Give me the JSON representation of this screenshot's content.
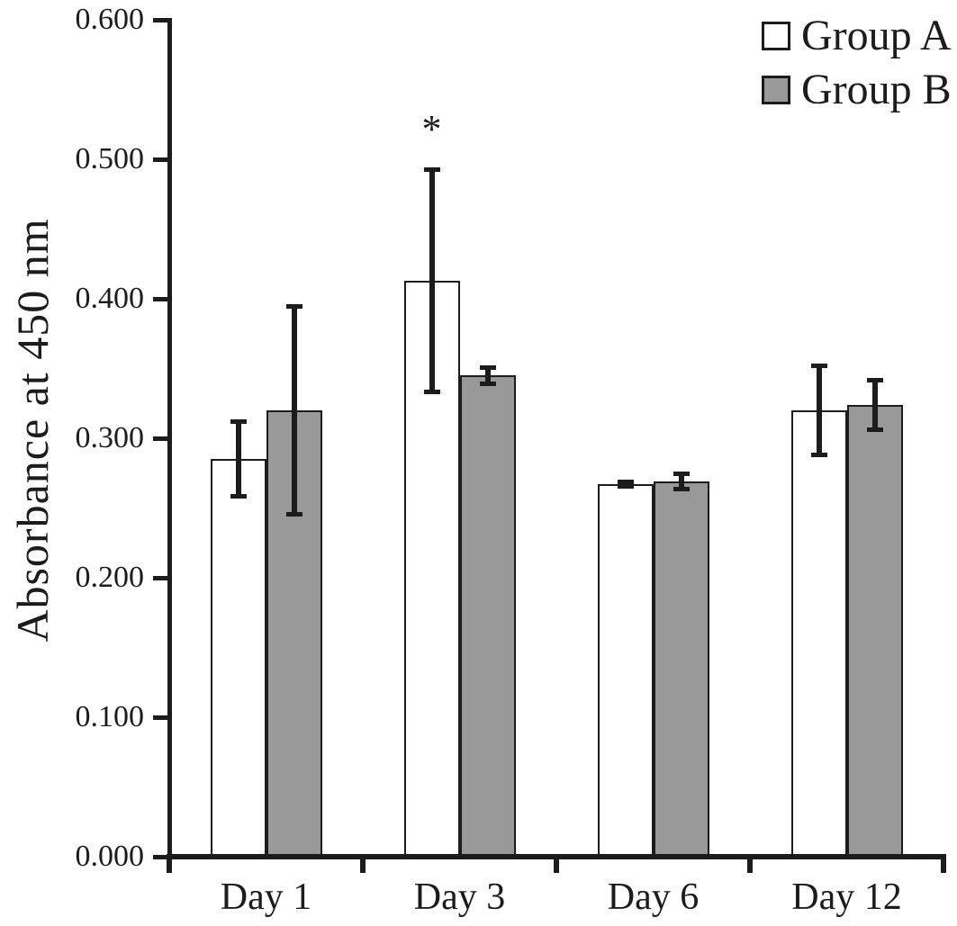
{
  "figure": {
    "background": "#ffffff",
    "axis_color": "#1c1c1c"
  },
  "legend": {
    "position": "top-right",
    "items": [
      {
        "label": "Group A",
        "fill": "#ffffff"
      },
      {
        "label": "Group B",
        "fill": "#999999"
      }
    ]
  },
  "chart_data": {
    "type": "bar",
    "title": "",
    "ylabel": "Absorbance at 450 nm",
    "xlabel": "",
    "categories": [
      "Day 1",
      "Day 3",
      "Day 6",
      "Day 12"
    ],
    "ylim": [
      0.0,
      0.6
    ],
    "ytick_step": 0.1,
    "ytick_labels": [
      "0.000",
      "0.100",
      "0.200",
      "0.300",
      "0.400",
      "0.500",
      "0.600"
    ],
    "grid": false,
    "legend_position": "top-right",
    "error_bars": true,
    "series": [
      {
        "name": "Group A",
        "fill": "#ffffff",
        "values": [
          0.285,
          0.413,
          0.267,
          0.32
        ],
        "errors": [
          0.027,
          0.08,
          0.002,
          0.032
        ]
      },
      {
        "name": "Group B",
        "fill": "#999999",
        "values": [
          0.32,
          0.345,
          0.269,
          0.324
        ],
        "errors": [
          0.075,
          0.006,
          0.006,
          0.018
        ]
      }
    ],
    "annotations": [
      {
        "text": "*",
        "category": "Day 3",
        "series": "Group A",
        "y_value": 0.525
      }
    ]
  }
}
